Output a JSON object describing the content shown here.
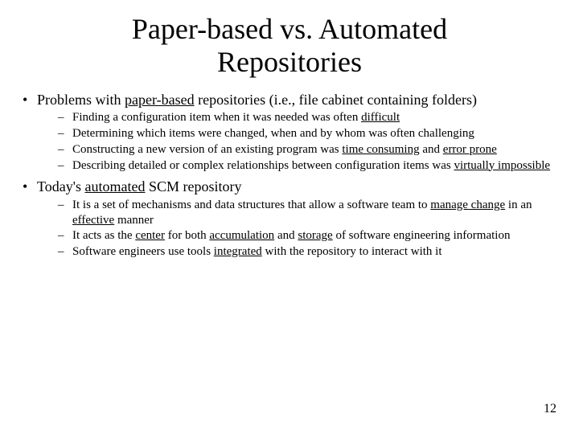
{
  "title_line1": "Paper-based vs. Automated",
  "title_line2": "Repositories",
  "bullets": {
    "b1_pre": "Problems with ",
    "b1_u": "paper-based",
    "b1_post": " repositories (i.e., file cabinet containing folders)",
    "b1s1_pre": "Finding a configuration item when it was needed was often ",
    "b1s1_u": "difficult",
    "b1s2": "Determining which items were changed, when and by whom was often challenging",
    "b1s3_pre": "Constructing a new version of an existing program was ",
    "b1s3_u1": "time consuming",
    "b1s3_mid": " and ",
    "b1s3_u2": "error prone",
    "b1s4_pre": "Describing detailed or complex relationships between configuration items was ",
    "b1s4_u": "virtually impossible",
    "b2_pre": "Today's ",
    "b2_u": "automated",
    "b2_post": " SCM repository",
    "b2s1_pre": "It is a set of mechanisms and data structures that allow a software team to ",
    "b2s1_u1": "manage change",
    "b2s1_mid": " in an ",
    "b2s1_u2": "effective",
    "b2s1_post": " manner",
    "b2s2_pre": "It acts as the ",
    "b2s2_u1": "center",
    "b2s2_mid1": " for both ",
    "b2s2_u2": "accumulation",
    "b2s2_mid2": " and ",
    "b2s2_u3": "storage",
    "b2s2_post": " of software engineering information",
    "b2s3_pre": "Software engineers use tools ",
    "b2s3_u": "integrated",
    "b2s3_post": " with the repository to interact with it"
  },
  "page_number": "12",
  "colors": {
    "background": "#ffffff",
    "text": "#000000"
  },
  "typography": {
    "title_fontsize_pt": 36,
    "bullet_fontsize_pt": 18,
    "subbullet_fontsize_pt": 15,
    "pagenum_fontsize_pt": 16,
    "font_family": "Times New Roman"
  }
}
